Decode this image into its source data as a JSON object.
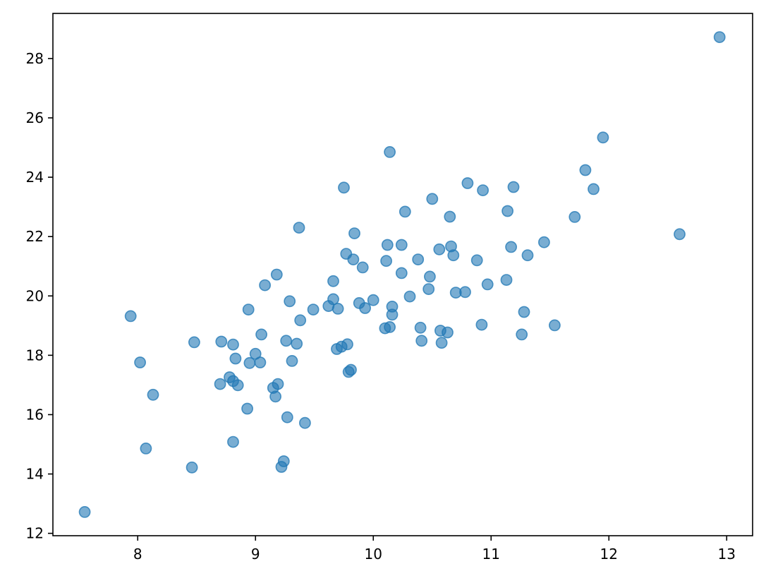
{
  "chart_data": {
    "type": "scatter",
    "title": "",
    "xlabel": "",
    "ylabel": "",
    "xlim": [
      7.28,
      13.22
    ],
    "ylim": [
      11.92,
      29.52
    ],
    "xticks": [
      8,
      9,
      10,
      11,
      12,
      13
    ],
    "yticks": [
      12,
      14,
      16,
      18,
      20,
      22,
      24,
      26,
      28
    ],
    "grid": false,
    "legend": "none",
    "marker_color": "#1f77b4",
    "marker_alpha": 0.6,
    "points": [
      [
        7.55,
        12.72
      ],
      [
        7.94,
        19.32
      ],
      [
        8.02,
        17.76
      ],
      [
        8.07,
        14.86
      ],
      [
        8.13,
        16.67
      ],
      [
        8.46,
        14.22
      ],
      [
        8.48,
        18.44
      ],
      [
        8.7,
        17.03
      ],
      [
        8.71,
        18.46
      ],
      [
        8.78,
        17.26
      ],
      [
        8.81,
        17.13
      ],
      [
        8.81,
        15.08
      ],
      [
        8.81,
        18.36
      ],
      [
        8.83,
        17.89
      ],
      [
        8.85,
        16.99
      ],
      [
        8.93,
        16.2
      ],
      [
        8.94,
        19.54
      ],
      [
        8.95,
        17.74
      ],
      [
        9.0,
        18.05
      ],
      [
        9.04,
        17.76
      ],
      [
        9.05,
        18.7
      ],
      [
        9.08,
        20.36
      ],
      [
        9.15,
        16.9
      ],
      [
        9.17,
        16.61
      ],
      [
        9.18,
        20.72
      ],
      [
        9.19,
        17.03
      ],
      [
        9.22,
        14.24
      ],
      [
        9.24,
        14.43
      ],
      [
        9.26,
        18.49
      ],
      [
        9.27,
        15.91
      ],
      [
        9.29,
        19.82
      ],
      [
        9.31,
        17.81
      ],
      [
        9.35,
        18.39
      ],
      [
        9.37,
        22.3
      ],
      [
        9.38,
        19.18
      ],
      [
        9.42,
        15.72
      ],
      [
        9.49,
        19.54
      ],
      [
        9.62,
        19.66
      ],
      [
        9.66,
        20.5
      ],
      [
        9.66,
        19.89
      ],
      [
        9.69,
        18.21
      ],
      [
        9.7,
        19.57
      ],
      [
        9.73,
        18.29
      ],
      [
        9.75,
        23.65
      ],
      [
        9.77,
        21.42
      ],
      [
        9.78,
        18.37
      ],
      [
        9.79,
        17.44
      ],
      [
        9.81,
        17.51
      ],
      [
        9.83,
        21.23
      ],
      [
        9.84,
        22.11
      ],
      [
        9.88,
        19.76
      ],
      [
        9.91,
        20.96
      ],
      [
        9.93,
        19.59
      ],
      [
        10.0,
        19.86
      ],
      [
        10.1,
        18.91
      ],
      [
        10.11,
        21.18
      ],
      [
        10.12,
        21.72
      ],
      [
        10.14,
        24.85
      ],
      [
        10.14,
        18.95
      ],
      [
        10.16,
        19.37
      ],
      [
        10.16,
        19.64
      ],
      [
        10.24,
        21.72
      ],
      [
        10.24,
        20.77
      ],
      [
        10.27,
        22.84
      ],
      [
        10.31,
        19.98
      ],
      [
        10.38,
        21.23
      ],
      [
        10.4,
        18.93
      ],
      [
        10.41,
        18.49
      ],
      [
        10.47,
        20.23
      ],
      [
        10.48,
        20.65
      ],
      [
        10.5,
        23.27
      ],
      [
        10.56,
        21.57
      ],
      [
        10.57,
        18.83
      ],
      [
        10.58,
        18.42
      ],
      [
        10.63,
        18.77
      ],
      [
        10.65,
        22.67
      ],
      [
        10.66,
        21.67
      ],
      [
        10.68,
        21.37
      ],
      [
        10.7,
        20.11
      ],
      [
        10.78,
        20.13
      ],
      [
        10.8,
        23.8
      ],
      [
        10.88,
        21.2
      ],
      [
        10.92,
        19.03
      ],
      [
        10.93,
        23.56
      ],
      [
        10.97,
        20.39
      ],
      [
        11.13,
        20.54
      ],
      [
        11.14,
        22.86
      ],
      [
        11.17,
        21.65
      ],
      [
        11.19,
        23.67
      ],
      [
        11.26,
        18.7
      ],
      [
        11.28,
        19.46
      ],
      [
        11.31,
        21.37
      ],
      [
        11.45,
        21.81
      ],
      [
        11.54,
        19.01
      ],
      [
        11.71,
        22.66
      ],
      [
        11.8,
        24.24
      ],
      [
        11.87,
        23.6
      ],
      [
        11.95,
        25.34
      ],
      [
        12.6,
        22.08
      ],
      [
        12.94,
        28.72
      ]
    ]
  }
}
